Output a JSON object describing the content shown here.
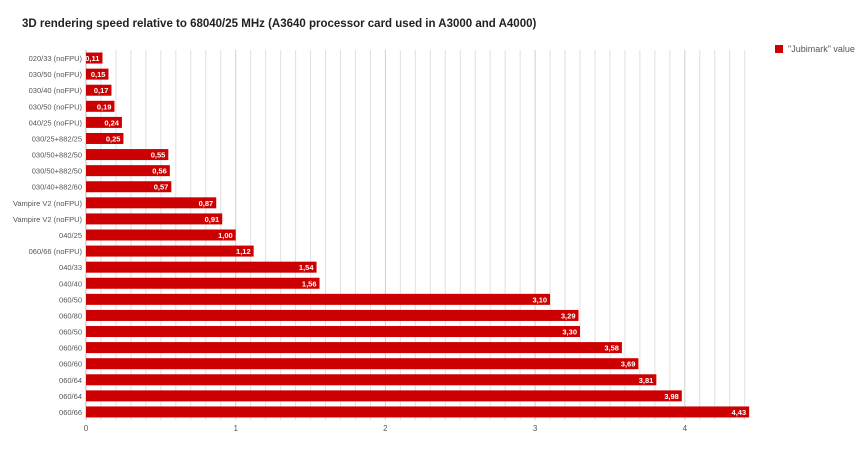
{
  "chart_data": {
    "type": "bar",
    "orientation": "horizontal",
    "title": "3D rendering speed relative to 68040/25 MHz (A3640 processor card used in A3000 and A4000)",
    "categories": [
      "020/33 (noFPU)",
      "030/50 (noFPU)",
      "030/40 (noFPU)",
      "030/50 (noFPU)",
      "040/25 (noFPU)",
      "030/25+882/25",
      "030/50+882/50",
      "030/50+882/50",
      "030/40+882/60",
      "Vampire V2 (noFPU)",
      "Vampire V2 (noFPU)",
      "040/25",
      "060/66 (noFPU)",
      "040/33",
      "040/40",
      "060/50",
      "060/80",
      "060/50",
      "060/60",
      "060/60",
      "060/64",
      "060/64",
      "060/66"
    ],
    "series": [
      {
        "name": "\"Jubimark\" value",
        "values": [
          0.11,
          0.15,
          0.17,
          0.19,
          0.24,
          0.25,
          0.55,
          0.56,
          0.57,
          0.87,
          0.91,
          1.0,
          1.12,
          1.54,
          1.56,
          3.1,
          3.29,
          3.3,
          3.58,
          3.69,
          3.81,
          3.98,
          4.43
        ],
        "labels": [
          "0,11",
          "0,15",
          "0,17",
          "0,19",
          "0,24",
          "0,25",
          "0,55",
          "0,56",
          "0,57",
          "0,87",
          "0,91",
          "1,00",
          "1,12",
          "1,54",
          "1,56",
          "3,10",
          "3,29",
          "3,30",
          "3,58",
          "3,69",
          "3,81",
          "3,98",
          "4,43"
        ]
      }
    ],
    "x_ticks": [
      "0",
      "1",
      "2",
      "3",
      "4"
    ],
    "xlim": [
      0,
      4.43
    ],
    "minor_grid": true,
    "legend_position": "top-right",
    "colors": {
      "bar": "#cc0000",
      "bar_label": "#ffffff",
      "grid": "#e0e0e0",
      "axis": "#bdbdbd",
      "text": "#555555"
    }
  }
}
